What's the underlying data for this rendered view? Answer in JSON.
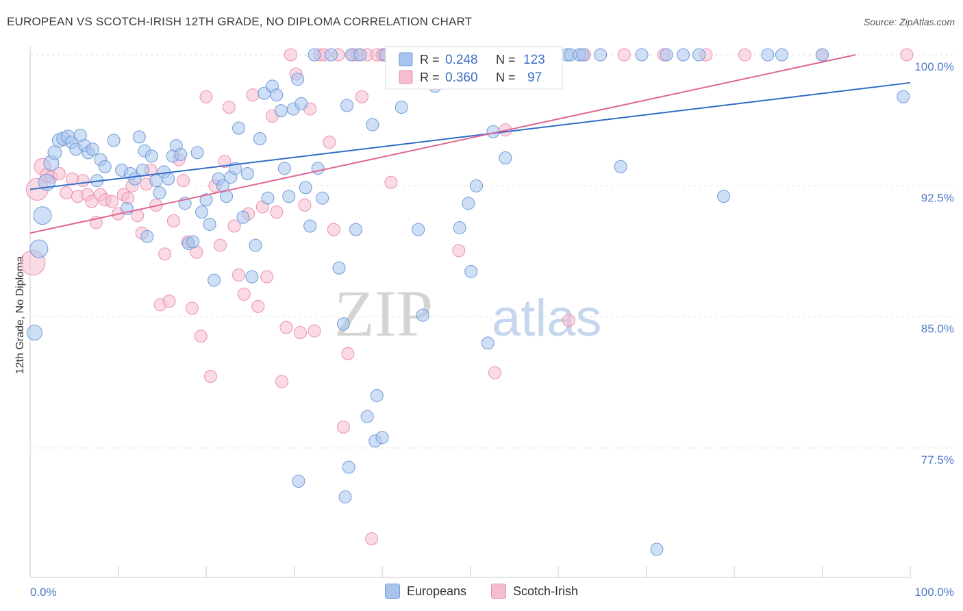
{
  "title": "EUROPEAN VS SCOTCH-IRISH 12TH GRADE, NO DIPLOMA CORRELATION CHART",
  "source": "Source: ZipAtlas.com",
  "watermark": {
    "zip": "ZIP",
    "atlas": "atlas"
  },
  "colors": {
    "europeans_fill": "#a8c4ec",
    "europeans_stroke": "#6f9ad8",
    "europeans_line": "#2f6cc8",
    "scotch_fill": "#f6bcd0",
    "scotch_stroke": "#ec8fae",
    "scotch_line": "#e06694",
    "axis_text": "#4a7ac8",
    "grid": "#e2e2e2"
  },
  "chart_data": {
    "type": "scatter",
    "title": "EUROPEAN VS SCOTCH-IRISH 12TH GRADE, NO DIPLOMA CORRELATION CHART",
    "xlabel": "",
    "ylabel": "12th Grade, No Diploma",
    "xlim": [
      0,
      100
    ],
    "ylim": [
      70.0,
      101.0
    ],
    "x_tick_labels": [
      "0.0%",
      "100.0%"
    ],
    "y_ticks": [
      77.5,
      85.0,
      92.5,
      100.0
    ],
    "y_tick_labels": [
      "77.5%",
      "85.0%",
      "92.5%",
      "100.0%"
    ],
    "legend": [
      {
        "name": "Europeans",
        "r_label": "R =",
        "r": "0.248",
        "n_label": "N =",
        "n": "123"
      },
      {
        "name": "Scotch-Irish",
        "r_label": "R =",
        "r": "0.360",
        "n_label": "N =",
        "n": "97"
      }
    ],
    "series": [
      {
        "name": "Europeans",
        "trend": {
          "x": [
            0,
            100
          ],
          "y": [
            92.3,
            98.4
          ]
        },
        "points": [
          [
            0.5,
            84.1
          ],
          [
            1.0,
            88.9
          ],
          [
            1.4,
            90.8
          ],
          [
            1.9,
            92.7
          ],
          [
            2.4,
            93.8
          ],
          [
            2.8,
            94.4
          ],
          [
            3.3,
            95.1
          ],
          [
            3.8,
            95.2
          ],
          [
            4.3,
            95.3
          ],
          [
            4.7,
            95.0
          ],
          [
            5.2,
            94.6
          ],
          [
            5.7,
            95.4
          ],
          [
            6.2,
            94.8
          ],
          [
            6.6,
            94.4
          ],
          [
            7.1,
            94.6
          ],
          [
            7.6,
            92.8
          ],
          [
            8.0,
            94.0
          ],
          [
            8.5,
            93.6
          ],
          [
            9.5,
            95.1
          ],
          [
            10.4,
            93.4
          ],
          [
            11.0,
            91.2
          ],
          [
            11.4,
            93.2
          ],
          [
            11.9,
            92.9
          ],
          [
            12.4,
            95.3
          ],
          [
            12.8,
            93.4
          ],
          [
            13.0,
            94.5
          ],
          [
            13.3,
            89.6
          ],
          [
            13.8,
            94.2
          ],
          [
            14.3,
            92.8
          ],
          [
            14.7,
            92.1
          ],
          [
            15.2,
            93.3
          ],
          [
            15.7,
            92.9
          ],
          [
            16.2,
            94.2
          ],
          [
            16.6,
            94.8
          ],
          [
            17.1,
            94.3
          ],
          [
            17.6,
            91.5
          ],
          [
            18.0,
            89.2
          ],
          [
            18.5,
            89.3
          ],
          [
            19.0,
            94.4
          ],
          [
            19.5,
            91.0
          ],
          [
            20.0,
            91.7
          ],
          [
            20.4,
            90.3
          ],
          [
            20.9,
            87.1
          ],
          [
            21.4,
            92.9
          ],
          [
            21.9,
            92.5
          ],
          [
            22.3,
            91.9
          ],
          [
            22.8,
            93.0
          ],
          [
            23.3,
            93.5
          ],
          [
            23.7,
            95.8
          ],
          [
            24.2,
            90.7
          ],
          [
            24.7,
            93.2
          ],
          [
            25.2,
            87.3
          ],
          [
            25.6,
            89.1
          ],
          [
            26.1,
            95.2
          ],
          [
            26.6,
            97.8
          ],
          [
            27.0,
            91.8
          ],
          [
            27.5,
            98.2
          ],
          [
            28.0,
            97.7
          ],
          [
            28.5,
            96.8
          ],
          [
            28.9,
            93.5
          ],
          [
            29.4,
            91.9
          ],
          [
            29.9,
            96.9
          ],
          [
            30.4,
            98.6
          ],
          [
            30.8,
            97.2
          ],
          [
            31.3,
            92.4
          ],
          [
            31.8,
            90.2
          ],
          [
            32.3,
            100.0
          ],
          [
            32.7,
            93.5
          ],
          [
            33.2,
            91.8
          ],
          [
            34.2,
            100.0
          ],
          [
            35.1,
            87.8
          ],
          [
            35.6,
            84.6
          ],
          [
            36.0,
            97.1
          ],
          [
            36.5,
            100.0
          ],
          [
            37.0,
            90.0
          ],
          [
            37.5,
            100.0
          ],
          [
            38.9,
            96.0
          ],
          [
            39.4,
            80.5
          ],
          [
            40.3,
            100.0
          ],
          [
            41.3,
            100.0
          ],
          [
            42.2,
            97.0
          ],
          [
            43.2,
            100.0
          ],
          [
            44.1,
            90.0
          ],
          [
            44.6,
            85.1
          ],
          [
            45.0,
            100.0
          ],
          [
            46.0,
            98.2
          ],
          [
            46.9,
            100.0
          ],
          [
            47.9,
            100.0
          ],
          [
            48.8,
            90.1
          ],
          [
            49.8,
            91.5
          ],
          [
            50.7,
            92.5
          ],
          [
            51.2,
            100.0
          ],
          [
            51.7,
            100.0
          ],
          [
            52.6,
            95.6
          ],
          [
            53.5,
            100.0
          ],
          [
            54.0,
            94.1
          ],
          [
            54.5,
            100.0
          ],
          [
            55.4,
            100.0
          ],
          [
            56.4,
            100.0
          ],
          [
            61.0,
            100.0
          ],
          [
            61.4,
            100.0
          ],
          [
            62.4,
            100.0
          ],
          [
            62.8,
            100.0
          ],
          [
            64.8,
            100.0
          ],
          [
            67.1,
            93.6
          ],
          [
            69.5,
            100.0
          ],
          [
            72.3,
            100.0
          ],
          [
            74.2,
            100.0
          ],
          [
            76.0,
            100.0
          ],
          [
            78.8,
            91.9
          ],
          [
            83.8,
            100.0
          ],
          [
            85.4,
            100.0
          ],
          [
            90.0,
            100.0
          ],
          [
            99.2,
            97.6
          ],
          [
            38.3,
            79.3
          ],
          [
            39.2,
            77.9
          ],
          [
            36.2,
            76.4
          ],
          [
            30.5,
            75.6
          ],
          [
            35.8,
            74.7
          ],
          [
            40.0,
            78.1
          ],
          [
            71.2,
            71.7
          ],
          [
            50.1,
            87.6
          ],
          [
            52.0,
            83.5
          ]
        ],
        "sizes": [
          11,
          13,
          13,
          12,
          11,
          10,
          10,
          10,
          10,
          9,
          9,
          9,
          9,
          9,
          9,
          9,
          9,
          9,
          9,
          9,
          9,
          9,
          9,
          9,
          9,
          9,
          9,
          9,
          9,
          9,
          9,
          9,
          9,
          9,
          9,
          9,
          9,
          9,
          9,
          9,
          9,
          9,
          9,
          9,
          9,
          9,
          9,
          9,
          9,
          9,
          9,
          9,
          9,
          9,
          9,
          9,
          9,
          9,
          9,
          9,
          9,
          9,
          9,
          9,
          9,
          9,
          9,
          9,
          9,
          9,
          9,
          9,
          9,
          9,
          9,
          9,
          9,
          9,
          9,
          9,
          9,
          9,
          9,
          9,
          9,
          9,
          9,
          9,
          9,
          9,
          9,
          9,
          9,
          9,
          9,
          9,
          9,
          9,
          9,
          9,
          9,
          9,
          9,
          9,
          9,
          9,
          9,
          9,
          9,
          9,
          9,
          9,
          9,
          9,
          9,
          9,
          9,
          9,
          9,
          9,
          9,
          9,
          9
        ]
      },
      {
        "name": "Scotch-Irish",
        "trend": {
          "x": [
            0,
            93.8
          ],
          "y": [
            89.8,
            100.0
          ]
        },
        "points": [
          [
            0.3,
            88.1
          ],
          [
            0.8,
            92.3
          ],
          [
            1.4,
            93.6
          ],
          [
            1.9,
            93.1
          ],
          [
            2.4,
            93.0
          ],
          [
            3.3,
            93.2
          ],
          [
            4.1,
            92.1
          ],
          [
            4.8,
            92.9
          ],
          [
            5.4,
            91.9
          ],
          [
            6.0,
            92.8
          ],
          [
            6.5,
            92.0
          ],
          [
            7.0,
            91.6
          ],
          [
            7.5,
            90.4
          ],
          [
            8.0,
            92.0
          ],
          [
            8.5,
            91.7
          ],
          [
            9.3,
            91.6
          ],
          [
            10.0,
            90.9
          ],
          [
            10.6,
            92.0
          ],
          [
            11.1,
            91.8
          ],
          [
            11.6,
            92.5
          ],
          [
            12.2,
            90.8
          ],
          [
            12.7,
            89.8
          ],
          [
            13.2,
            92.6
          ],
          [
            13.7,
            93.4
          ],
          [
            14.3,
            91.4
          ],
          [
            14.8,
            85.7
          ],
          [
            15.3,
            88.6
          ],
          [
            15.8,
            85.9
          ],
          [
            16.3,
            90.5
          ],
          [
            16.9,
            94.0
          ],
          [
            17.4,
            92.8
          ],
          [
            17.9,
            89.3
          ],
          [
            18.4,
            85.5
          ],
          [
            18.9,
            88.7
          ],
          [
            19.4,
            83.9
          ],
          [
            20.0,
            97.6
          ],
          [
            20.5,
            81.6
          ],
          [
            21.0,
            92.5
          ],
          [
            21.6,
            89.1
          ],
          [
            22.1,
            93.9
          ],
          [
            22.6,
            97.0
          ],
          [
            23.2,
            90.2
          ],
          [
            23.7,
            87.4
          ],
          [
            24.3,
            86.3
          ],
          [
            24.8,
            90.9
          ],
          [
            25.3,
            97.7
          ],
          [
            25.9,
            85.6
          ],
          [
            26.4,
            91.3
          ],
          [
            26.9,
            87.3
          ],
          [
            27.5,
            96.5
          ],
          [
            28.0,
            91.0
          ],
          [
            28.6,
            81.3
          ],
          [
            29.1,
            84.4
          ],
          [
            29.6,
            100.0
          ],
          [
            30.2,
            98.9
          ],
          [
            30.7,
            84.1
          ],
          [
            31.2,
            91.4
          ],
          [
            31.8,
            96.9
          ],
          [
            32.3,
            84.2
          ],
          [
            32.9,
            100.0
          ],
          [
            33.4,
            100.0
          ],
          [
            34.0,
            95.0
          ],
          [
            34.5,
            90.0
          ],
          [
            35.0,
            100.0
          ],
          [
            35.6,
            78.7
          ],
          [
            36.1,
            82.9
          ],
          [
            36.7,
            100.0
          ],
          [
            37.2,
            100.0
          ],
          [
            37.7,
            97.6
          ],
          [
            38.3,
            100.0
          ],
          [
            38.8,
            72.3
          ],
          [
            39.4,
            100.0
          ],
          [
            40.0,
            100.0
          ],
          [
            40.5,
            100.0
          ],
          [
            41.0,
            92.7
          ],
          [
            42.1,
            100.0
          ],
          [
            43.2,
            100.0
          ],
          [
            44.3,
            100.0
          ],
          [
            45.4,
            100.0
          ],
          [
            46.5,
            100.0
          ],
          [
            47.6,
            100.0
          ],
          [
            48.7,
            88.8
          ],
          [
            50.0,
            100.0
          ],
          [
            51.4,
            100.0
          ],
          [
            52.8,
            81.8
          ],
          [
            54.0,
            95.7
          ],
          [
            55.5,
            100.0
          ],
          [
            58.0,
            100.0
          ],
          [
            59.0,
            100.0
          ],
          [
            61.2,
            84.8
          ],
          [
            63.0,
            100.0
          ],
          [
            67.5,
            100.0
          ],
          [
            72.0,
            100.0
          ],
          [
            76.8,
            100.0
          ],
          [
            81.2,
            100.0
          ],
          [
            90.0,
            100.0
          ],
          [
            99.6,
            100.0
          ]
        ],
        "sizes": [
          18,
          16,
          12,
          10,
          9,
          9,
          9,
          9,
          9,
          9,
          9,
          9,
          9,
          9,
          9,
          9,
          9,
          9,
          9,
          9,
          9,
          9,
          9,
          9,
          9,
          9,
          9,
          9,
          9,
          9,
          9,
          9,
          9,
          9,
          9,
          9,
          9,
          9,
          9,
          9,
          9,
          9,
          9,
          9,
          9,
          9,
          9,
          9,
          9,
          9,
          9,
          9,
          9,
          9,
          9,
          9,
          9,
          9,
          9,
          9,
          9,
          9,
          9,
          9,
          9,
          9,
          9,
          9,
          9,
          9,
          9,
          9,
          9,
          9,
          9,
          9,
          9,
          9,
          9,
          9,
          9,
          9,
          9,
          9,
          9,
          9,
          9,
          9,
          9,
          9,
          9,
          9,
          9,
          9,
          9,
          9,
          9
        ]
      }
    ]
  }
}
